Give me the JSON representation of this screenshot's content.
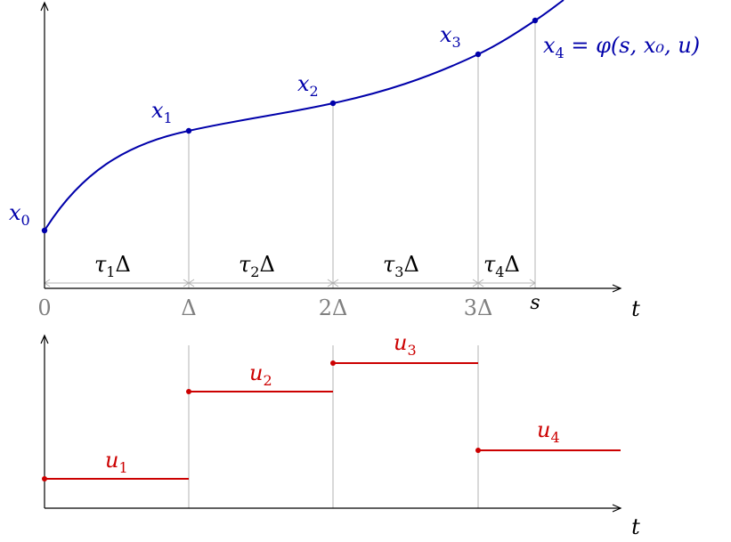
{
  "colors": {
    "curve": "#0000aa",
    "control": "#cc0000",
    "guide": "#b3b3b3",
    "axis": "#000000",
    "tick_label": "#808080"
  },
  "top_plot": {
    "axis_label": "t",
    "tick_labels": [
      "0",
      "Δ",
      "2Δ",
      "3Δ"
    ],
    "s_label": "s",
    "intervals": [
      {
        "tau": "τ",
        "sub": "1",
        "delta": "Δ"
      },
      {
        "tau": "τ",
        "sub": "2",
        "delta": "Δ"
      },
      {
        "tau": "τ",
        "sub": "3",
        "delta": "Δ"
      },
      {
        "tau": "τ",
        "sub": "4",
        "delta": "Δ"
      }
    ],
    "points": [
      {
        "name": "x",
        "sub": "0",
        "suffix": ""
      },
      {
        "name": "x",
        "sub": "1",
        "suffix": ""
      },
      {
        "name": "x",
        "sub": "2",
        "suffix": ""
      },
      {
        "name": "x",
        "sub": "3",
        "suffix": ""
      },
      {
        "name": "x",
        "sub": "4",
        "suffix": " = φ(s, x₀, u)"
      }
    ]
  },
  "bottom_plot": {
    "axis_label": "t",
    "controls": [
      {
        "name": "u",
        "sub": "1"
      },
      {
        "name": "u",
        "sub": "2"
      },
      {
        "name": "u",
        "sub": "3"
      },
      {
        "name": "u",
        "sub": "4"
      }
    ]
  }
}
